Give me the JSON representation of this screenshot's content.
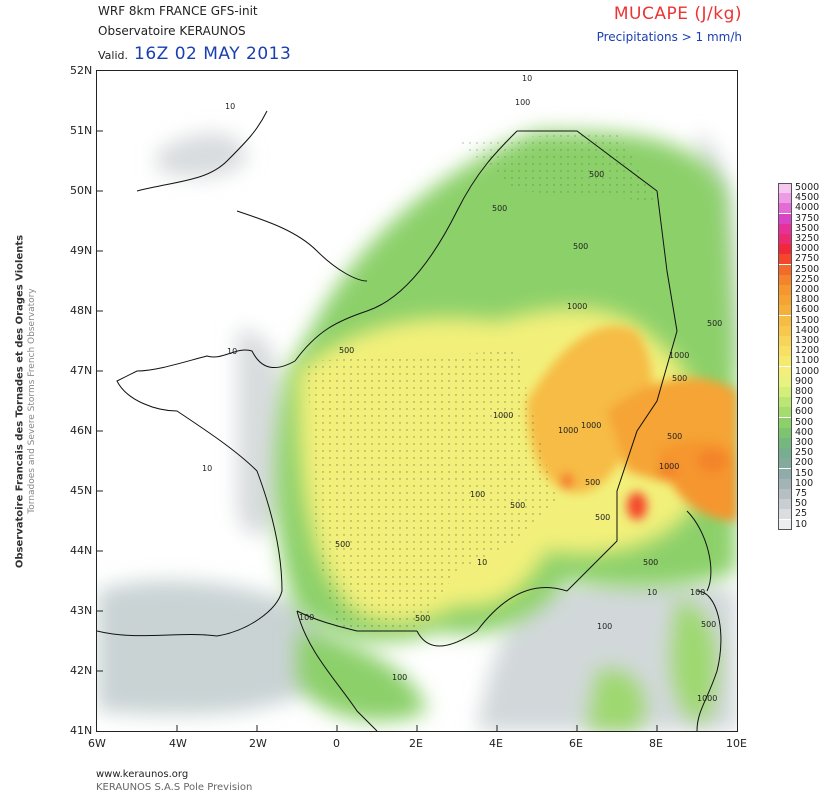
{
  "header": {
    "model": "WRF 8km FRANCE   GFS-init",
    "org": "Observatoire KERAUNOS",
    "valid_label": "Valid.",
    "valid_time": "16Z 02 MAY 2013",
    "parameter": "MUCAPE (J/kg)",
    "subtitle": "Precipitations > 1 mm/h"
  },
  "side_text": {
    "line1": "Observatoire Francais des Tornades et des Orages Violents",
    "line2": "Tornadoes and Severe Storms French Observatory"
  },
  "axes": {
    "lat_labels": [
      "52N",
      "51N",
      "50N",
      "49N",
      "48N",
      "47N",
      "46N",
      "45N",
      "44N",
      "43N",
      "42N",
      "41N"
    ],
    "lon_labels": [
      "6W",
      "4W",
      "2W",
      "0",
      "2E",
      "4E",
      "6E",
      "8E",
      "10E"
    ]
  },
  "legend": {
    "values": [
      "5000",
      "4500",
      "4000",
      "3750",
      "3500",
      "3250",
      "3000",
      "2750",
      "2500",
      "2250",
      "2000",
      "1800",
      "1600",
      "1500",
      "1400",
      "1300",
      "1200",
      "1100",
      "1000",
      "900",
      "800",
      "700",
      "600",
      "500",
      "400",
      "300",
      "250",
      "200",
      "150",
      "100",
      "75",
      "50",
      "25",
      "10"
    ],
    "colors": [
      "#f6c8f0",
      "#ee9be6",
      "#e46ad8",
      "#d844c4",
      "#e8309a",
      "#ec2a72",
      "#f0283a",
      "#f4462a",
      "#f46a2a",
      "#f4842c",
      "#f5962e",
      "#f5a434",
      "#f5b03c",
      "#f6bc44",
      "#f7c84e",
      "#f8d458",
      "#f8e064",
      "#f6ea6e",
      "#f2f07a",
      "#e8f27e",
      "#d4ee7a",
      "#bce674",
      "#a4dc6e",
      "#8cd06a",
      "#7cc472",
      "#74b880",
      "#78ae90",
      "#84aa9e",
      "#90acaa",
      "#a2b4b6",
      "#b6c0c4",
      "#c8ced2",
      "#dadee0",
      "#eceff0"
    ]
  },
  "contour_labels": [
    "10",
    "100",
    "500",
    "1000"
  ],
  "footer": {
    "url": "www.keraunos.org",
    "company": "KERAUNOS S.A.S Pole Prevision"
  }
}
